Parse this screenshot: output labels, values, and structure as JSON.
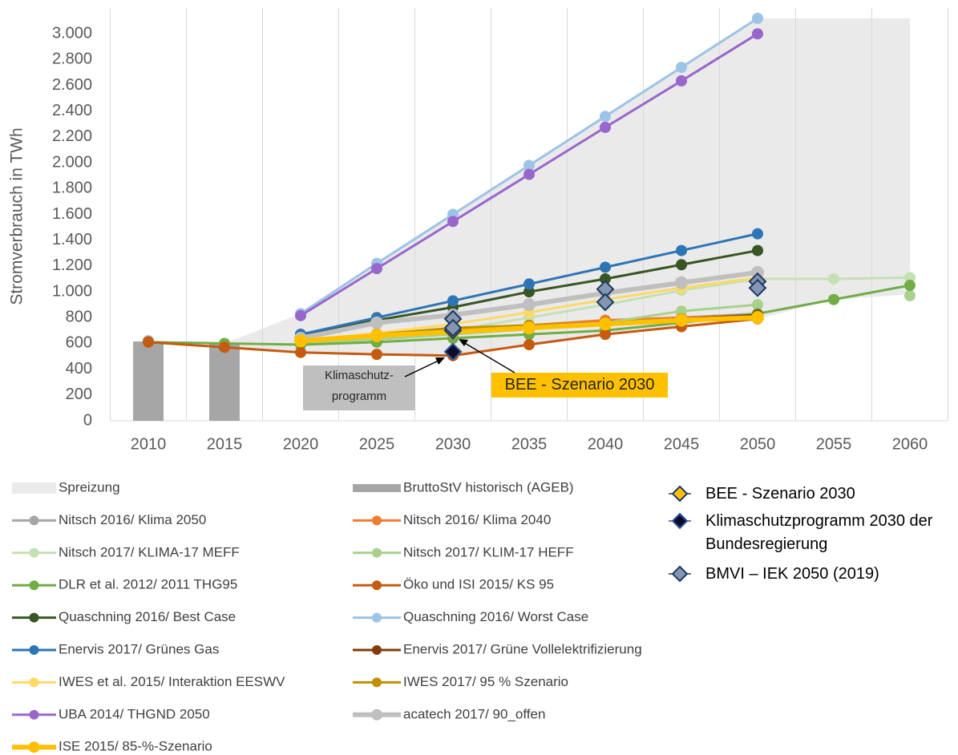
{
  "chart_data": {
    "type": "line",
    "y_label": "Stromverbrauch in TWh",
    "categories": [
      "2010",
      "2015",
      "2020",
      "2025",
      "2030",
      "2035",
      "2040",
      "2045",
      "2050",
      "2055",
      "2060"
    ],
    "ylim": [
      0,
      3200
    ],
    "yticks": [
      0,
      200,
      400,
      600,
      800,
      {
        "value": 1000,
        "label": "1.000"
      },
      {
        "value": 1200,
        "label": "1.200"
      },
      {
        "value": 1400,
        "label": "1.400"
      },
      {
        "value": 1600,
        "label": "1.600"
      },
      {
        "value": 1800,
        "label": "1.800"
      },
      {
        "value": 2000,
        "label": "2.000"
      },
      {
        "value": 2200,
        "label": "2.200"
      },
      {
        "value": 2400,
        "label": "2.400"
      },
      {
        "value": 2600,
        "label": "2.600"
      },
      {
        "value": 2800,
        "label": "2.800"
      },
      {
        "value": 3000,
        "label": "3.000"
      }
    ],
    "spread": {
      "name": "Spreizung",
      "color": "#d9d9d9",
      "high": [
        null,
        600,
        830,
        1220,
        1600,
        1980,
        2360,
        2740,
        3120,
        3120,
        3120
      ],
      "low": [
        null,
        580,
        530,
        520,
        500,
        590,
        670,
        730,
        790,
        940,
        980
      ]
    },
    "bars": {
      "name": "BruttoStV historisch (AGEB)",
      "color": "#a6a6a6",
      "values": [
        615,
        595,
        null,
        null,
        null,
        null,
        null,
        null,
        null,
        null,
        null
      ]
    },
    "series": [
      {
        "name": "Nitsch 2016/ Klima 2050",
        "color": "#a6a6a6",
        "values": [
          620,
          null,
          610,
          650,
          690,
          730,
          770,
          800,
          830,
          null,
          null
        ]
      },
      {
        "name": "Nitsch 2016/ Klima 2040",
        "color": "#ed7d31",
        "values": [
          null,
          null,
          610,
          650,
          700,
          740,
          780,
          800,
          820,
          null,
          null
        ]
      },
      {
        "name": "Nitsch 2017/ KLIMA-17 MEFF",
        "color": "#c5e0b4",
        "values": [
          null,
          null,
          600,
          640,
          700,
          800,
          900,
          1010,
          1100,
          1100,
          1110
        ]
      },
      {
        "name": "Nitsch 2017/ KLIM-17 HEFF",
        "color": "#a9d18e",
        "values": [
          null,
          null,
          600,
          630,
          670,
          710,
          760,
          850,
          900,
          null,
          970
        ]
      },
      {
        "name": "DLR et al. 2012/ 2011 THG95",
        "color": "#70ad47",
        "values": [
          610,
          600,
          590,
          610,
          640,
          670,
          700,
          760,
          830,
          940,
          1050
        ]
      },
      {
        "name": "Öko und ISI 2015/ KS 95",
        "color": "#c55a11",
        "values": [
          610,
          570,
          530,
          515,
          505,
          590,
          670,
          730,
          790,
          null,
          null
        ]
      },
      {
        "name": "Quaschning 2016/ Best Case",
        "color": "#375623",
        "values": [
          null,
          null,
          670,
          780,
          880,
          1000,
          1100,
          1210,
          1320,
          null,
          null
        ]
      },
      {
        "name": "Quaschning 2016/ Worst Case",
        "color": "#9dc3e6",
        "values": [
          null,
          null,
          830,
          1220,
          1600,
          1980,
          2360,
          2740,
          3120,
          null,
          null
        ]
      },
      {
        "name": "Enervis 2017/ Grünes Gas",
        "color": "#2e75b6",
        "values": [
          null,
          null,
          670,
          800,
          930,
          1060,
          1190,
          1320,
          1450,
          null,
          null
        ]
      },
      {
        "name": "Enervis 2017/ Grüne Vollelektrifizierung",
        "color": "#843c0c",
        "values": [
          null,
          null,
          620,
          660,
          700,
          730,
          760,
          790,
          820,
          null,
          null
        ]
      },
      {
        "name": "IWES et al. 2015/ Interaktion EESWV",
        "color": "#ffd966",
        "values": [
          null,
          null,
          620,
          680,
          750,
          840,
          940,
          1030,
          1110,
          null,
          null
        ]
      },
      {
        "name": "IWES 2017/ 95 % Szenario",
        "color": "#bf9000",
        "values": [
          null,
          null,
          620,
          670,
          720,
          740,
          760,
          790,
          810,
          null,
          null
        ]
      },
      {
        "name": "UBA 2014/ THGND 2050",
        "color": "#9966cc",
        "values": [
          null,
          null,
          815,
          1180,
          1545,
          1910,
          2275,
          2635,
          3000,
          null,
          null
        ]
      },
      {
        "name": "acatech 2017/ 90_offen",
        "color": "#bfbfbf",
        "width": 6,
        "values": [
          null,
          null,
          640,
          760,
          820,
          900,
          990,
          1070,
          1150,
          null,
          null
        ]
      },
      {
        "name": "ISE 2015/ 85-%-Szenario",
        "color": "#ffc000",
        "width": 6,
        "values": [
          null,
          null,
          620,
          660,
          690,
          720,
          750,
          780,
          800,
          null,
          null
        ]
      }
    ],
    "markers": [
      {
        "name": "BEE - Szenario 2030",
        "color": "#ffc000",
        "values": [
          null,
          null,
          null,
          null,
          [
            700
          ],
          null,
          null,
          null,
          null,
          null,
          null
        ]
      },
      {
        "name": "Klimaschutzprogramm 2030 der Bundesregierung",
        "color": "#0d0d2b",
        "values": [
          null,
          null,
          null,
          null,
          [
            535
          ],
          null,
          null,
          null,
          null,
          null,
          null
        ]
      },
      {
        "name": "BMVI – IEK 2050 (2019)",
        "color": "#8497b0",
        "values": [
          null,
          null,
          null,
          null,
          [
            790,
            720
          ],
          null,
          [
            1020,
            920
          ],
          null,
          [
            1080,
            1030
          ],
          null,
          null
        ]
      }
    ],
    "annotations": [
      "Klimaschutz-programm 2030",
      "BEE - Szenario 2030"
    ]
  }
}
